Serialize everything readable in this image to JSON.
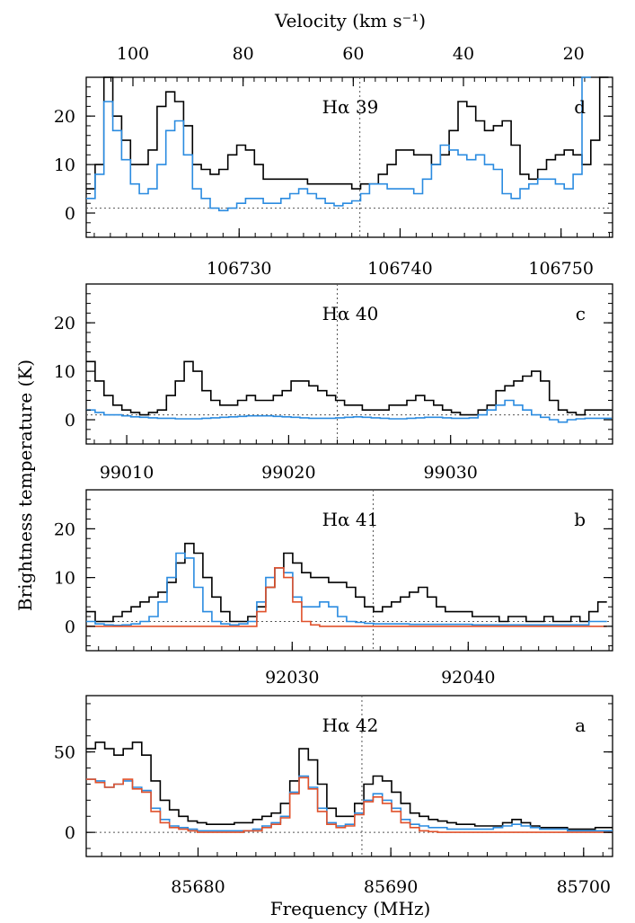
{
  "figure": {
    "top_axis_title": "Velocity (km s⁻¹)",
    "x_axis_title": "Frequency (MHz)",
    "y_axis_title": "Brightness temperature (K)",
    "top_ticks": [
      "100",
      "80",
      "60",
      "40",
      "20"
    ],
    "top_ticks_value": [
      100,
      80,
      60,
      40,
      20
    ]
  },
  "chart_data": [
    {
      "type": "line",
      "panel": "d",
      "line_label": "Hα 39",
      "xlim": [
        106720.5,
        106753.2
      ],
      "ylim": [
        -5,
        28
      ],
      "x_ticks": [
        106730,
        106740,
        106750
      ],
      "x_tick_labels": [
        "106730",
        "106740",
        "106750"
      ],
      "y_ticks": [
        0,
        10,
        20
      ],
      "y_tick_labels": [
        "0",
        "10",
        "20"
      ],
      "zero_line": 1,
      "center_line_x": 106737.5,
      "x_start": 106720.5,
      "x_step": 0.55,
      "series": [
        {
          "color": "#000000",
          "values": [
            5,
            10,
            28,
            20,
            15,
            10,
            10,
            13,
            22,
            25,
            23,
            18,
            10,
            9,
            8,
            9,
            12,
            14,
            13,
            10,
            7,
            7,
            7,
            7,
            7,
            6,
            6,
            6,
            6,
            6,
            5,
            6,
            6,
            8,
            10,
            13,
            13,
            12,
            12,
            10,
            12,
            17,
            23,
            22,
            19,
            17,
            18,
            19,
            14,
            8,
            7,
            9,
            11,
            12,
            13,
            12,
            10,
            15,
            28
          ]
        },
        {
          "color": "#2a8be0",
          "values": [
            3,
            8,
            23,
            17,
            11,
            6,
            4,
            5,
            10,
            17,
            19,
            12,
            5,
            3,
            1,
            0.5,
            1,
            2,
            3,
            3,
            2,
            2,
            3,
            4,
            5,
            4,
            3,
            2,
            1.5,
            2,
            2.5,
            4,
            6,
            6,
            5,
            5,
            5,
            4,
            7,
            10,
            14,
            13,
            12,
            11,
            12,
            10,
            9,
            4,
            3,
            5,
            6,
            7,
            7,
            6,
            5,
            8,
            28
          ]
        }
      ]
    },
    {
      "type": "line",
      "panel": "c",
      "line_label": "Hα 40",
      "xlim": [
        99007.5,
        99040
      ],
      "ylim": [
        -5,
        28
      ],
      "x_ticks": [
        99010,
        99020,
        99030
      ],
      "x_tick_labels": [
        "99010",
        "99020",
        "99030"
      ],
      "y_ticks": [
        0,
        10,
        20
      ],
      "y_tick_labels": [
        "0",
        "10",
        "20"
      ],
      "zero_line": 1,
      "center_line_x": 99023,
      "x_start": 99007.5,
      "x_step": 0.55,
      "series": [
        {
          "color": "#000000",
          "values": [
            12,
            8,
            5,
            3,
            2,
            1.5,
            1,
            1.5,
            2,
            5,
            8,
            12,
            10,
            6,
            4,
            3,
            3,
            4,
            5,
            4,
            4,
            5,
            6,
            8,
            8,
            7,
            6,
            5,
            4,
            3,
            3,
            2,
            2,
            2,
            3,
            3,
            4,
            5,
            4,
            3,
            2,
            1.5,
            1,
            1,
            2,
            3,
            6,
            7,
            8,
            9,
            10,
            8,
            4,
            2,
            1.5,
            1,
            2,
            2,
            2
          ]
        },
        {
          "color": "#2a8be0",
          "values": [
            2,
            1.5,
            1,
            1,
            0.8,
            0.6,
            0.5,
            0.4,
            0.3,
            0.3,
            0.2,
            0.2,
            0.2,
            0.3,
            0.4,
            0.5,
            0.6,
            0.7,
            0.8,
            0.8,
            0.8,
            0.7,
            0.6,
            0.5,
            0.4,
            0.3,
            0.3,
            0.3,
            0.4,
            0.5,
            0.6,
            0.5,
            0.4,
            0.3,
            0.2,
            0.2,
            0.3,
            0.4,
            0.5,
            0.5,
            0.4,
            0.3,
            0.3,
            0.4,
            1,
            2,
            3,
            4,
            3,
            2,
            1,
            0.5,
            0,
            -0.5,
            0,
            0.2,
            0.3,
            0.3,
            0.3
          ]
        }
      ]
    },
    {
      "type": "line",
      "panel": "b",
      "line_label": "Hα 41",
      "xlim": [
        92018.3,
        92048.2
      ],
      "ylim": [
        -5,
        28
      ],
      "x_ticks": [
        92030,
        92040
      ],
      "x_tick_labels": [
        "92030",
        "92040"
      ],
      "y_ticks": [
        0,
        10,
        20
      ],
      "y_tick_labels": [
        "0",
        "10",
        "20"
      ],
      "zero_line": 1,
      "center_line_x": 92034.6,
      "x_start": 92018.3,
      "x_step": 0.51,
      "series": [
        {
          "color": "#000000",
          "values": [
            3,
            1,
            1,
            2,
            3,
            4,
            5,
            6,
            7,
            9,
            13,
            17,
            15,
            10,
            6,
            3,
            1,
            1,
            2,
            4,
            8,
            12,
            15,
            13,
            11,
            10,
            10,
            9,
            9,
            8,
            6,
            4,
            3,
            4,
            5,
            6,
            7,
            8,
            6,
            4,
            3,
            3,
            3,
            2,
            2,
            2,
            1,
            2,
            2,
            1,
            1,
            2,
            1,
            1,
            2,
            1,
            3,
            5
          ]
        },
        {
          "color": "#2a8be0",
          "values": [
            1,
            0.5,
            0.3,
            0.2,
            0.3,
            0.5,
            1,
            2,
            5,
            10,
            15,
            14,
            8,
            3,
            1,
            0.5,
            0.3,
            0.5,
            1,
            5,
            10,
            12,
            11,
            6,
            4,
            4,
            5,
            4,
            2,
            1,
            0.8,
            0.6,
            0.5,
            0.5,
            0.5,
            0.5,
            0.4,
            0.4,
            0.4,
            0.4,
            0.4,
            0.4,
            0.4,
            0.3,
            0.3,
            0.3,
            0.3,
            0.3,
            0.3,
            0.3,
            0.3,
            0.3,
            0.3,
            0.3,
            0.3,
            0.3,
            1,
            1
          ]
        },
        {
          "color": "#e0502a",
          "values": [
            0,
            0,
            0,
            0,
            0,
            0,
            0,
            0,
            0,
            0,
            0,
            0,
            0,
            0,
            0,
            0,
            0,
            0,
            0,
            3,
            8,
            12,
            10,
            5,
            1,
            0.3,
            0,
            0,
            0,
            0,
            0,
            0,
            0,
            0,
            0,
            0,
            0,
            0,
            0,
            0,
            0,
            0,
            0,
            0,
            0,
            0,
            0,
            0,
            0,
            0,
            0,
            0,
            0,
            0,
            0,
            0,
            0,
            0
          ]
        }
      ]
    },
    {
      "type": "line",
      "panel": "a",
      "line_label": "Hα 42",
      "xlim": [
        85674.2,
        85701.5
      ],
      "ylim": [
        -15,
        85
      ],
      "x_ticks": [
        85680,
        85690,
        85700
      ],
      "x_tick_labels": [
        "85680",
        "85690",
        "85700"
      ],
      "y_ticks": [
        0,
        50
      ],
      "y_tick_labels": [
        "0",
        "50"
      ],
      "zero_line": 0,
      "center_line_x": 85688.5,
      "x_start": 85674.2,
      "x_step": 0.48,
      "series": [
        {
          "color": "#000000",
          "values": [
            52,
            56,
            52,
            48,
            52,
            56,
            48,
            32,
            20,
            14,
            10,
            7,
            6,
            5,
            5,
            5,
            6,
            6,
            8,
            10,
            12,
            18,
            32,
            52,
            45,
            30,
            15,
            10,
            10,
            18,
            30,
            35,
            32,
            25,
            18,
            12,
            10,
            8,
            7,
            6,
            5,
            5,
            4,
            4,
            4,
            6,
            8,
            6,
            4,
            3,
            3,
            3,
            2,
            2,
            2,
            3,
            3
          ]
        },
        {
          "color": "#2a8be0",
          "values": [
            33,
            32,
            28,
            30,
            32,
            28,
            26,
            15,
            8,
            4,
            3,
            2,
            1,
            1,
            1,
            1,
            1,
            1,
            2,
            4,
            6,
            10,
            25,
            35,
            28,
            15,
            6,
            4,
            5,
            12,
            20,
            24,
            20,
            15,
            8,
            5,
            4,
            3,
            3,
            2,
            2,
            2,
            2,
            2,
            3,
            4,
            5,
            4,
            3,
            2,
            2,
            2,
            1,
            1,
            1,
            1,
            1
          ]
        },
        {
          "color": "#e0502a",
          "values": [
            33,
            31,
            28,
            30,
            33,
            27,
            25,
            13,
            6,
            3,
            2,
            1,
            0,
            0,
            0,
            0,
            0,
            1,
            1,
            3,
            5,
            9,
            24,
            34,
            27,
            13,
            5,
            3,
            4,
            11,
            19,
            22,
            18,
            13,
            6,
            3,
            1,
            0.5,
            0,
            0,
            0,
            0,
            0,
            0,
            0,
            0,
            0,
            0,
            0,
            0,
            0,
            0,
            0,
            0,
            0,
            0,
            0
          ]
        }
      ]
    }
  ]
}
